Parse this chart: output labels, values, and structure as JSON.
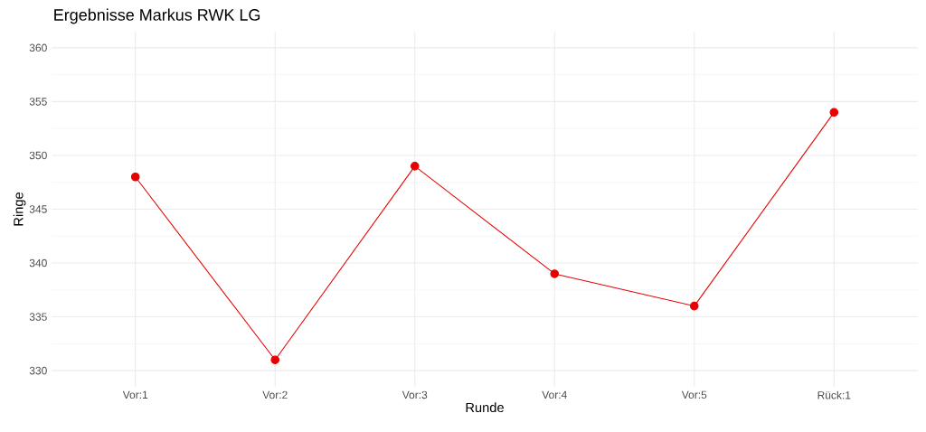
{
  "chart_data": {
    "type": "line",
    "title": "Ergebnisse Markus RWK LG",
    "xlabel": "Runde",
    "ylabel": "Ringe",
    "categories": [
      "Vor:1",
      "Vor:2",
      "Vor:3",
      "Vor:4",
      "Vor:5",
      "Rück:1"
    ],
    "series": [
      {
        "color": "#e60000",
        "values": [
          348,
          331,
          349,
          339,
          336,
          354
        ]
      }
    ],
    "ylim": [
      328.5,
      361.5
    ],
    "yticks": [
      330,
      335,
      340,
      345,
      350,
      355,
      360
    ],
    "grid": true,
    "marker": "circle",
    "line_style": "solid"
  }
}
